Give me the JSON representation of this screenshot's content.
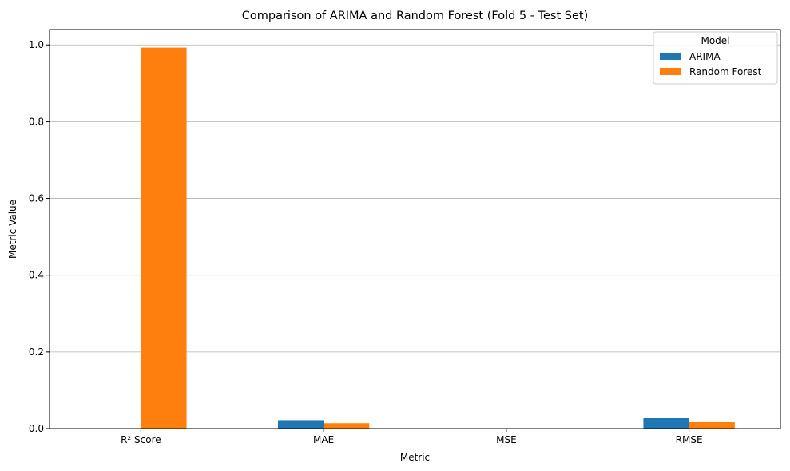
{
  "chart_data": {
    "type": "bar",
    "title": "Comparison of ARIMA and Random Forest (Fold 5 - Test Set)",
    "xlabel": "Metric",
    "ylabel": "Metric Value",
    "categories": [
      "R² Score",
      "MAE",
      "MSE",
      "RMSE"
    ],
    "series": [
      {
        "name": "ARIMA",
        "color": "#1f77b4",
        "values": [
          0.001,
          0.022,
          0.001,
          0.028
        ]
      },
      {
        "name": "Random Forest",
        "color": "#ff7f0e",
        "values": [
          0.993,
          0.014,
          0.0003,
          0.018
        ]
      }
    ],
    "ylim": [
      0,
      1.04
    ],
    "yticks": [
      "0.0",
      "0.2",
      "0.4",
      "0.6",
      "0.8",
      "1.0"
    ],
    "grid": "y",
    "legend": {
      "title": "Model",
      "placement": "top-right"
    }
  }
}
